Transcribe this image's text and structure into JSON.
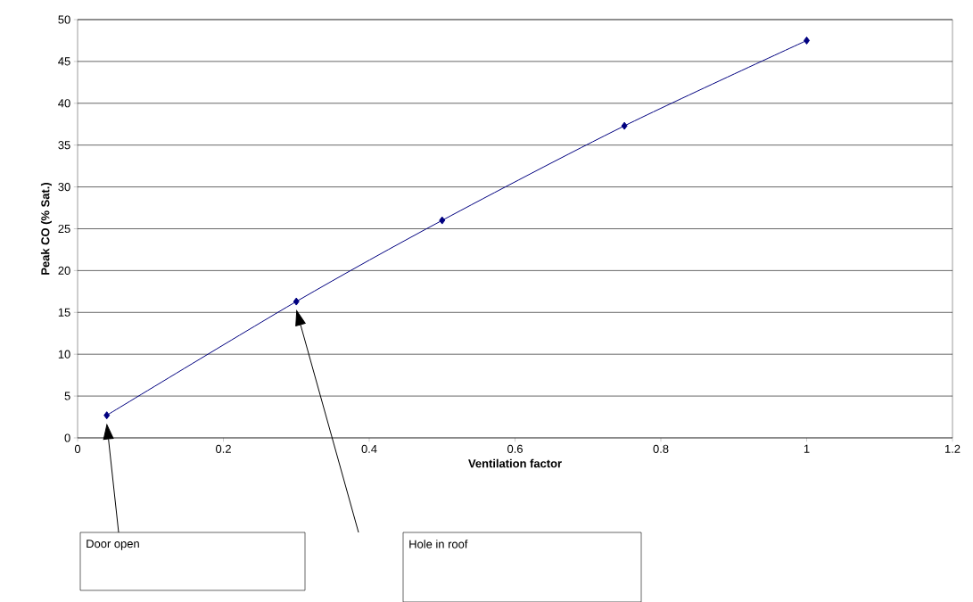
{
  "chart_data": {
    "type": "line",
    "xlabel": "Ventilation factor",
    "ylabel": "Peak CO (% Sat.)",
    "series": [
      {
        "color": "#000080",
        "x": [
          0.04,
          0.3,
          0.5,
          0.75,
          1
        ],
        "values": [
          2.7,
          16.3,
          26,
          37.3,
          47.5
        ]
      }
    ],
    "xlim": [
      0,
      1.2
    ],
    "ylim": [
      0,
      50
    ],
    "xticks": [
      0,
      0.2,
      0.4,
      0.6,
      0.8,
      1,
      1.2
    ],
    "yticks": [
      0,
      5,
      10,
      15,
      20,
      25,
      30,
      35,
      40,
      45,
      50
    ],
    "grid": "y",
    "marker": "diamond",
    "line_style": "solid",
    "annotations": [
      "Door open",
      "Hole in roof"
    ]
  }
}
